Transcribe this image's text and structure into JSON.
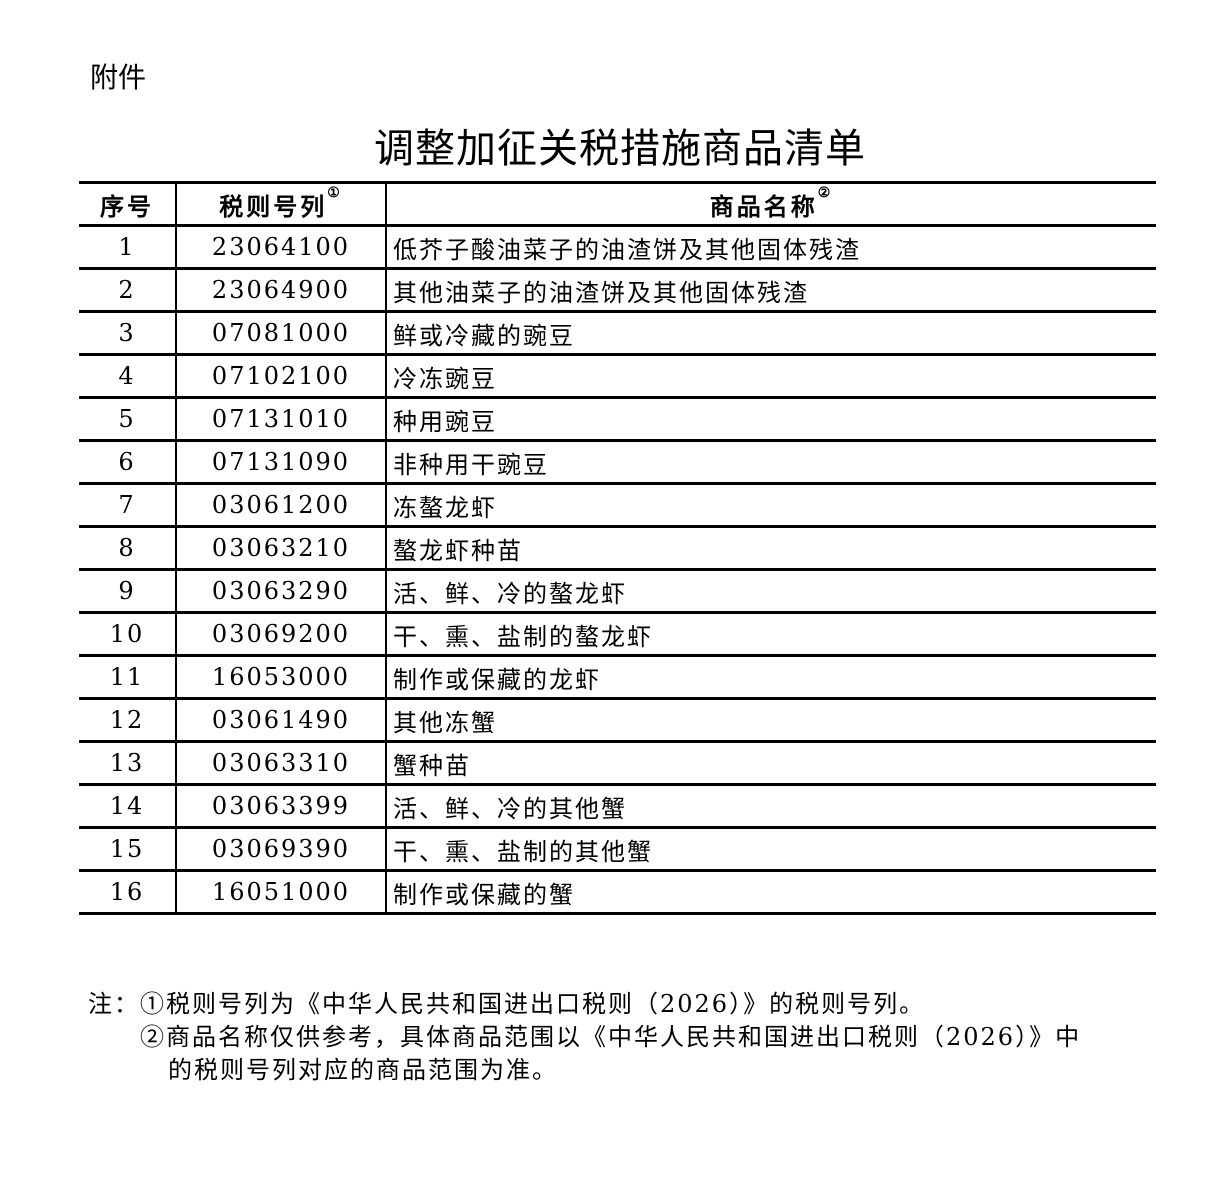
{
  "attachment_label": "附件",
  "title": "调整加征关税措施商品清单",
  "table": {
    "headers": [
      {
        "label": "序号",
        "mark": ""
      },
      {
        "label": "税则号列",
        "mark": "①"
      },
      {
        "label": "商品名称",
        "mark": "②"
      }
    ],
    "rows": [
      {
        "no": "1",
        "code": "23064100",
        "name": "低芥子酸油菜子的油渣饼及其他固体残渣"
      },
      {
        "no": "2",
        "code": "23064900",
        "name": "其他油菜子的油渣饼及其他固体残渣"
      },
      {
        "no": "3",
        "code": "07081000",
        "name": "鲜或冷藏的豌豆"
      },
      {
        "no": "4",
        "code": "07102100",
        "name": "冷冻豌豆"
      },
      {
        "no": "5",
        "code": "07131010",
        "name": "种用豌豆"
      },
      {
        "no": "6",
        "code": "07131090",
        "name": "非种用干豌豆"
      },
      {
        "no": "7",
        "code": "03061200",
        "name": "冻螯龙虾"
      },
      {
        "no": "8",
        "code": "03063210",
        "name": "螯龙虾种苗"
      },
      {
        "no": "9",
        "code": "03063290",
        "name": "活、鲜、冷的螯龙虾"
      },
      {
        "no": "10",
        "code": "03069200",
        "name": "干、熏、盐制的螯龙虾"
      },
      {
        "no": "11",
        "code": "16053000",
        "name": "制作或保藏的龙虾"
      },
      {
        "no": "12",
        "code": "03061490",
        "name": "其他冻蟹"
      },
      {
        "no": "13",
        "code": "03063310",
        "name": "蟹种苗"
      },
      {
        "no": "14",
        "code": "03063399",
        "name": "活、鲜、冷的其他蟹"
      },
      {
        "no": "15",
        "code": "03069390",
        "name": "干、熏、盐制的其他蟹"
      },
      {
        "no": "16",
        "code": "16051000",
        "name": "制作或保藏的蟹"
      }
    ]
  },
  "notes": {
    "line1": "注：①税则号列为《中华人民共和国进出口税则（2026）》的税则号列。",
    "line2": "②商品名称仅供参考，具体商品范围以《中华人民共和国进出口税则（2026）》中",
    "line3": "的税则号列对应的商品范围为准。"
  }
}
